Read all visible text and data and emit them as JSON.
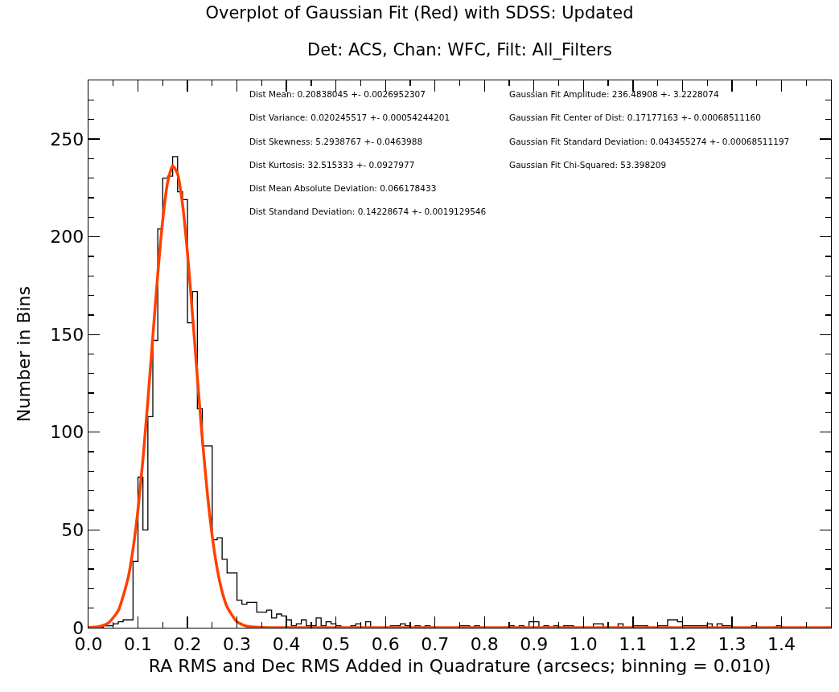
{
  "chart_data": {
    "type": "histogram",
    "title": "Overplot of Gaussian Fit (Red) with SDSS: Updated",
    "subtitle": "Det: ACS, Chan: WFC, Filt: All_Filters",
    "xlabel": "RA RMS and Dec RMS Added in Quadrature (arcsecs; binning = 0.010)",
    "ylabel": "Number in Bins",
    "bins": [
      0,
      0.01,
      0.02,
      0.03,
      0.04,
      0.05,
      0.06,
      0.07,
      0.08,
      0.09,
      0.1,
      0.11,
      0.12,
      0.13,
      0.14,
      0.15,
      0.16,
      0.17,
      0.18,
      0.19,
      0.2,
      0.21,
      0.22,
      0.23,
      0.24,
      0.25,
      0.26,
      0.27,
      0.28,
      0.29,
      0.3,
      0.31,
      0.32,
      0.33,
      0.34,
      0.35,
      0.36,
      0.37,
      0.38,
      0.39,
      0.4,
      0.41,
      0.42,
      0.43,
      0.44,
      0.45,
      0.46,
      0.47,
      0.48,
      0.49,
      0.5,
      0.51,
      0.52,
      0.53,
      0.54,
      0.55,
      0.56,
      0.57,
      0.58,
      0.59,
      0.6,
      0.61,
      0.62,
      0.63,
      0.64,
      0.65,
      0.66,
      0.67,
      0.68,
      0.69,
      0.7,
      0.71,
      0.72,
      0.73,
      0.74,
      0.75,
      0.76,
      0.77,
      0.78,
      0.79,
      0.8,
      0.81,
      0.82,
      0.83,
      0.84,
      0.85,
      0.86,
      0.87,
      0.88,
      0.89,
      0.9,
      0.91,
      0.92,
      0.93,
      0.94,
      0.95,
      0.96,
      0.97,
      0.98,
      0.99,
      1,
      1.01,
      1.02,
      1.03,
      1.04,
      1.05,
      1.06,
      1.07,
      1.08,
      1.09,
      1.1,
      1.11,
      1.12,
      1.13,
      1.14,
      1.15,
      1.16,
      1.17,
      1.18,
      1.19,
      1.2,
      1.21,
      1.22,
      1.23,
      1.24,
      1.25,
      1.26,
      1.27,
      1.28,
      1.29,
      1.3,
      1.31,
      1.32,
      1.33,
      1.34,
      1.35,
      1.36,
      1.37,
      1.38,
      1.39,
      1.4,
      1.41,
      1.42,
      1.43,
      1.44,
      1.45,
      1.46,
      1.47,
      1.48,
      1.49,
      1.5
    ],
    "values": [
      0,
      0,
      0,
      1,
      1,
      2,
      3,
      4,
      4,
      34,
      77,
      50,
      108,
      147,
      204,
      230,
      231,
      241,
      223,
      219,
      156,
      172,
      112,
      93,
      93,
      45,
      46,
      35,
      28,
      28,
      14,
      12,
      13,
      13,
      8,
      8,
      9,
      5,
      7,
      6,
      4,
      1,
      2,
      4,
      1,
      1,
      5,
      1,
      3,
      2,
      1,
      0,
      0,
      1,
      2,
      0,
      3,
      0,
      0,
      0,
      0,
      1,
      1,
      2,
      1,
      0,
      1,
      0,
      1,
      0,
      0,
      0,
      0,
      0,
      0,
      1,
      1,
      0,
      1,
      0,
      0,
      0,
      0,
      0,
      0,
      1,
      0,
      1,
      0,
      3,
      3,
      0,
      1,
      0,
      1,
      0,
      1,
      1,
      0,
      0,
      0,
      0,
      2,
      2,
      0,
      0,
      0,
      2,
      0,
      0,
      1,
      1,
      1,
      0,
      0,
      1,
      1,
      4,
      4,
      3,
      1,
      1,
      1,
      1,
      1,
      2,
      0,
      2,
      1,
      1,
      0,
      0,
      0,
      0,
      1,
      0,
      0,
      0,
      0,
      1,
      0,
      0,
      0,
      0,
      0,
      0,
      0,
      0,
      0,
      0
    ],
    "color": "#000000",
    "series": [
      {
        "type": "line",
        "color": "#ff4000",
        "x": [
          0,
          0.02,
          0.04,
          0.06,
          0.08,
          0.09,
          0.1,
          0.11,
          0.12,
          0.13,
          0.14,
          0.15,
          0.16,
          0.17,
          0.18,
          0.19,
          0.2,
          0.21,
          0.22,
          0.23,
          0.24,
          0.25,
          0.26,
          0.27,
          0.28,
          0.3,
          0.32,
          0.35,
          0.4,
          0.6,
          0.8,
          1.0,
          1.2,
          1.5
        ],
        "values": [
          0.1,
          0.5,
          2.4,
          8.7,
          25.4,
          40.3,
          60.4,
          86.1,
          116.2,
          148.9,
          180.9,
          208.5,
          227.9,
          236.3,
          232.3,
          216.6,
          191.6,
          160.7,
          127.9,
          96.5,
          69.1,
          46.9,
          30.2,
          18.4,
          10.7,
          3.0,
          0.7,
          0.1,
          0,
          0,
          0,
          0,
          0,
          0
        ]
      }
    ],
    "xlim": [
      0,
      1.5
    ],
    "ylim": [
      0,
      280
    ],
    "xticks": [
      {
        "value": 0,
        "label": "0.0"
      },
      {
        "value": 0.05,
        "label": null
      },
      {
        "value": 0.1,
        "label": "0.1"
      },
      {
        "value": 0.15,
        "label": null
      },
      {
        "value": 0.2,
        "label": "0.2"
      },
      {
        "value": 0.25,
        "label": null
      },
      {
        "value": 0.3,
        "label": "0.3"
      },
      {
        "value": 0.35,
        "label": null
      },
      {
        "value": 0.4,
        "label": "0.4"
      },
      {
        "value": 0.45,
        "label": null
      },
      {
        "value": 0.5,
        "label": "0.5"
      },
      {
        "value": 0.55,
        "label": null
      },
      {
        "value": 0.6,
        "label": "0.6"
      },
      {
        "value": 0.65,
        "label": null
      },
      {
        "value": 0.7,
        "label": "0.7"
      },
      {
        "value": 0.75,
        "label": null
      },
      {
        "value": 0.8,
        "label": "0.8"
      },
      {
        "value": 0.85,
        "label": null
      },
      {
        "value": 0.9,
        "label": "0.9"
      },
      {
        "value": 0.95,
        "label": null
      },
      {
        "value": 1,
        "label": "1.0"
      },
      {
        "value": 1.05,
        "label": null
      },
      {
        "value": 1.1,
        "label": "1.1"
      },
      {
        "value": 1.15,
        "label": null
      },
      {
        "value": 1.2,
        "label": "1.2"
      },
      {
        "value": 1.25,
        "label": null
      },
      {
        "value": 1.3,
        "label": "1.3"
      },
      {
        "value": 1.35,
        "label": null
      },
      {
        "value": 1.4,
        "label": "1.4"
      },
      {
        "value": 1.45,
        "label": null
      }
    ],
    "yticks": [
      0,
      {
        "value": 10,
        "label": null
      },
      {
        "value": 20,
        "label": null
      },
      {
        "value": 30,
        "label": null
      },
      {
        "value": 40,
        "label": null
      },
      50,
      {
        "value": 60,
        "label": null
      },
      {
        "value": 70,
        "label": null
      },
      {
        "value": 80,
        "label": null
      },
      {
        "value": 90,
        "label": null
      },
      100,
      {
        "value": 110,
        "label": null
      },
      {
        "value": 120,
        "label": null
      },
      {
        "value": 130,
        "label": null
      },
      {
        "value": 140,
        "label": null
      },
      150,
      {
        "value": 160,
        "label": null
      },
      {
        "value": 170,
        "label": null
      },
      {
        "value": 180,
        "label": null
      },
      {
        "value": 190,
        "label": null
      },
      200,
      {
        "value": 210,
        "label": null
      },
      {
        "value": 220,
        "label": null
      },
      {
        "value": 230,
        "label": null
      },
      {
        "value": 240,
        "label": null
      },
      250,
      {
        "value": 260,
        "label": null
      },
      {
        "value": 270,
        "label": null
      }
    ],
    "annotations": [
      "Dist Mean: 0.20838045 +- 0.0026952307",
      "Dist Variance: 0.020245517 +- 0.00054244201",
      "Dist Skewness: 5.2938767 +- 0.0463988",
      "Dist Kurtosis: 32.515333 +- 0.0927977",
      "Dist Mean Absolute Deviation: 0.066178433",
      "Dist Standand Deviation: 0.14228674 +- 0.0019129546",
      "Gaussian Fit Amplitude: 236.48908 +- 3.2228074",
      "Gaussian Fit Center of Dist: 0.17177163 +- 0.00068511160",
      "Gaussian Fit Standard Deviation: 0.043455274 +- 0.00068511197",
      "Gaussian Fit Chi-Squared: 53.398209"
    ],
    "grid": false
  }
}
